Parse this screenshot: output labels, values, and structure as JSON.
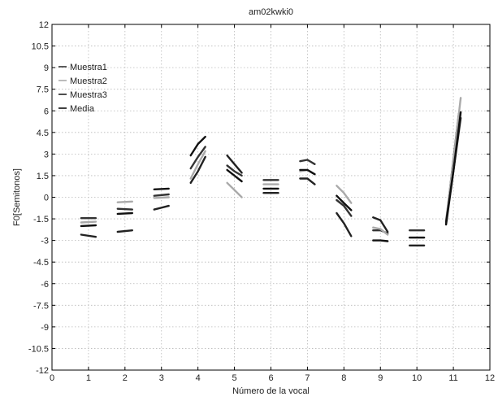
{
  "chart_data": {
    "type": "line",
    "title": "am02kwki0",
    "xlabel": "Número de la vocal",
    "ylabel": "F0[Semitonos]",
    "xlim": [
      0,
      12
    ],
    "ylim": [
      -12,
      12
    ],
    "xticks": [
      0,
      1,
      2,
      3,
      4,
      5,
      6,
      7,
      8,
      9,
      10,
      11,
      12
    ],
    "yticks": [
      -12,
      -10.5,
      -9,
      -7.5,
      -6,
      -4.5,
      -3,
      -1.5,
      0,
      1.5,
      3,
      4.5,
      6,
      7.5,
      9,
      10.5,
      12
    ],
    "ytick_labels": [
      "-12",
      "-10.5",
      "-9",
      "-7.5",
      "-6",
      "-4.5",
      "-3",
      "-1.5",
      "0",
      "1.5",
      "3",
      "4.5",
      "6",
      "7.5",
      "9",
      "10.5",
      "12"
    ],
    "grid": true,
    "legend_position": "top-left",
    "legend": [
      "Muestra1",
      "Muestra2",
      "Muestra3",
      "Media"
    ],
    "series": [
      {
        "name": "Muestra1",
        "color": "#333333",
        "segments": [
          [
            [
              0.8,
              -1.45
            ],
            [
              1.2,
              -1.45
            ]
          ],
          [
            [
              1.8,
              -0.8
            ],
            [
              2.2,
              -0.85
            ]
          ],
          [
            [
              2.8,
              0.1
            ],
            [
              3.2,
              0.2
            ]
          ],
          [
            [
              3.8,
              2.0
            ],
            [
              4.0,
              2.8
            ],
            [
              4.2,
              3.5
            ]
          ],
          [
            [
              4.8,
              2.2
            ],
            [
              5.0,
              1.8
            ],
            [
              5.2,
              1.5
            ]
          ],
          [
            [
              5.8,
              1.2
            ],
            [
              6.2,
              1.2
            ]
          ],
          [
            [
              6.8,
              2.5
            ],
            [
              7.0,
              2.6
            ],
            [
              7.2,
              2.3
            ]
          ],
          [
            [
              7.8,
              -0.2
            ],
            [
              8.0,
              -0.6
            ],
            [
              8.2,
              -1.3
            ]
          ],
          [
            [
              8.8,
              -2.3
            ],
            [
              9.0,
              -2.3
            ],
            [
              9.2,
              -2.5
            ]
          ],
          [
            [
              9.8,
              -2.3
            ],
            [
              10.2,
              -2.3
            ]
          ],
          [
            [
              10.8,
              -1.8
            ],
            [
              10.95,
              1.5
            ],
            [
              11.15,
              5.8
            ]
          ]
        ]
      },
      {
        "name": "Muestra2",
        "color": "#aaaaaa",
        "segments": [
          [
            [
              0.8,
              -1.75
            ],
            [
              1.2,
              -1.7
            ]
          ],
          [
            [
              1.8,
              -0.35
            ],
            [
              2.2,
              -0.3
            ]
          ],
          [
            [
              2.8,
              -0.05
            ],
            [
              3.2,
              0.0
            ]
          ],
          [
            [
              3.8,
              1.3
            ],
            [
              4.0,
              2.3
            ],
            [
              4.2,
              3.2
            ]
          ],
          [
            [
              4.8,
              1.0
            ],
            [
              5.0,
              0.5
            ],
            [
              5.2,
              0.0
            ]
          ],
          [
            [
              5.8,
              0.9
            ],
            [
              6.2,
              0.9
            ]
          ],
          [
            [
              6.8,
              1.8
            ],
            [
              7.0,
              1.9
            ],
            [
              7.2,
              1.6
            ]
          ],
          [
            [
              7.8,
              0.8
            ],
            [
              8.0,
              0.3
            ],
            [
              8.2,
              -0.4
            ]
          ],
          [
            [
              8.8,
              -2.1
            ],
            [
              9.0,
              -2.2
            ],
            [
              9.2,
              -2.6
            ]
          ],
          [
            [
              9.8,
              -2.8
            ],
            [
              10.2,
              -2.8
            ]
          ],
          [
            [
              10.8,
              -1.6
            ],
            [
              11.0,
              2.5
            ],
            [
              11.2,
              6.9
            ]
          ]
        ]
      },
      {
        "name": "Muestra3",
        "color": "#222222",
        "segments": [
          [
            [
              0.8,
              -2.6
            ],
            [
              1.2,
              -2.75
            ]
          ],
          [
            [
              1.8,
              -2.4
            ],
            [
              2.2,
              -2.3
            ]
          ],
          [
            [
              2.8,
              -0.85
            ],
            [
              3.2,
              -0.6
            ]
          ],
          [
            [
              3.8,
              1.0
            ],
            [
              4.0,
              1.8
            ],
            [
              4.2,
              2.8
            ]
          ],
          [
            [
              4.8,
              2.9
            ],
            [
              5.0,
              2.3
            ],
            [
              5.2,
              1.7
            ]
          ],
          [
            [
              5.8,
              0.3
            ],
            [
              6.2,
              0.3
            ]
          ],
          [
            [
              6.8,
              1.3
            ],
            [
              7.0,
              1.3
            ],
            [
              7.2,
              0.9
            ]
          ],
          [
            [
              7.8,
              -1.1
            ],
            [
              8.0,
              -1.8
            ],
            [
              8.2,
              -2.7
            ]
          ],
          [
            [
              8.8,
              -1.4
            ],
            [
              9.0,
              -1.6
            ],
            [
              9.2,
              -2.4
            ]
          ],
          [
            [
              9.8,
              -3.35
            ],
            [
              10.2,
              -3.35
            ]
          ],
          [
            [
              10.8,
              -1.7
            ],
            [
              11.0,
              1.8
            ],
            [
              11.2,
              5.5
            ]
          ]
        ]
      },
      {
        "name": "Media",
        "color": "#111111",
        "segments": [
          [
            [
              0.8,
              -2.0
            ],
            [
              1.2,
              -1.95
            ]
          ],
          [
            [
              1.8,
              -1.15
            ],
            [
              2.2,
              -1.1
            ]
          ],
          [
            [
              2.8,
              0.55
            ],
            [
              3.2,
              0.6
            ]
          ],
          [
            [
              3.8,
              2.9
            ],
            [
              4.0,
              3.7
            ],
            [
              4.2,
              4.2
            ]
          ],
          [
            [
              4.8,
              1.9
            ],
            [
              5.0,
              1.5
            ],
            [
              5.2,
              1.1
            ]
          ],
          [
            [
              5.8,
              0.6
            ],
            [
              6.2,
              0.6
            ]
          ],
          [
            [
              6.8,
              1.9
            ],
            [
              7.0,
              1.9
            ],
            [
              7.2,
              1.6
            ]
          ],
          [
            [
              7.8,
              0.1
            ],
            [
              8.0,
              -0.4
            ],
            [
              8.2,
              -0.9
            ]
          ],
          [
            [
              8.8,
              -3.0
            ],
            [
              9.0,
              -3.0
            ],
            [
              9.2,
              -3.05
            ]
          ],
          [
            [
              9.8,
              -2.8
            ],
            [
              10.2,
              -2.8
            ]
          ],
          [
            [
              10.8,
              -1.9
            ],
            [
              11.0,
              1.8
            ],
            [
              11.2,
              5.9
            ]
          ]
        ]
      }
    ]
  }
}
